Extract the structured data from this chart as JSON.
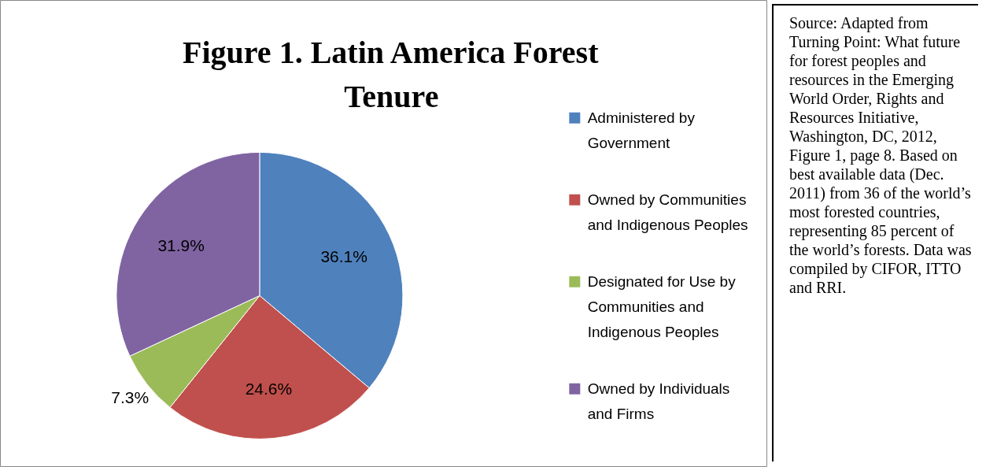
{
  "chart_data": {
    "type": "pie",
    "title": "Figure 1. Latin America Forest Tenure",
    "categories": [
      "Administered by Government",
      "Owned by Communities and Indigenous Peoples",
      "Designated for Use by Communities and Indigenous Peoples",
      "Owned by Individuals and Firms"
    ],
    "values": [
      36.1,
      24.6,
      7.3,
      31.9
    ],
    "colors": [
      "#4f81bd",
      "#c0504d",
      "#9bbb59",
      "#8064a2"
    ],
    "value_labels": [
      "36.1%",
      "24.6%",
      "7.3%",
      "31.9%"
    ],
    "legend": "right",
    "annotations": [
      "Source: Adapted from Turning Point: What future for forest peoples and resources in the Emerging World Order, Rights and Resources Initiative, Washington, DC, 2012, Figure 1, page 8. Based on best available data (Dec. 2011) from 36 of the world’s most forested countries, representing 85 percent of the world’s forests. Data was compiled by CIFOR, ITTO and RRI."
    ]
  }
}
